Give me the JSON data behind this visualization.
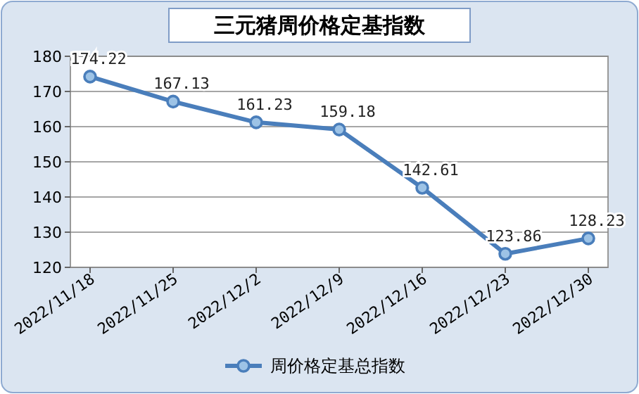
{
  "chart_data": {
    "type": "line",
    "title": "三元猪周价格定基指数",
    "categories": [
      "2022/11/18",
      "2022/11/25",
      "2022/12/2",
      "2022/12/9",
      "2022/12/16",
      "2022/12/23",
      "2022/12/30"
    ],
    "series": [
      {
        "name": "周价格定基总指数",
        "color": "#4a7ebb",
        "values": [
          174.22,
          167.13,
          161.23,
          159.18,
          142.61,
          123.86,
          128.23
        ]
      }
    ],
    "ylim": [
      120,
      180
    ],
    "yticks": [
      120,
      130,
      140,
      150,
      160,
      170,
      180
    ],
    "grid": "y",
    "legend": "bottom",
    "marker": "circle",
    "data_labels": true
  }
}
